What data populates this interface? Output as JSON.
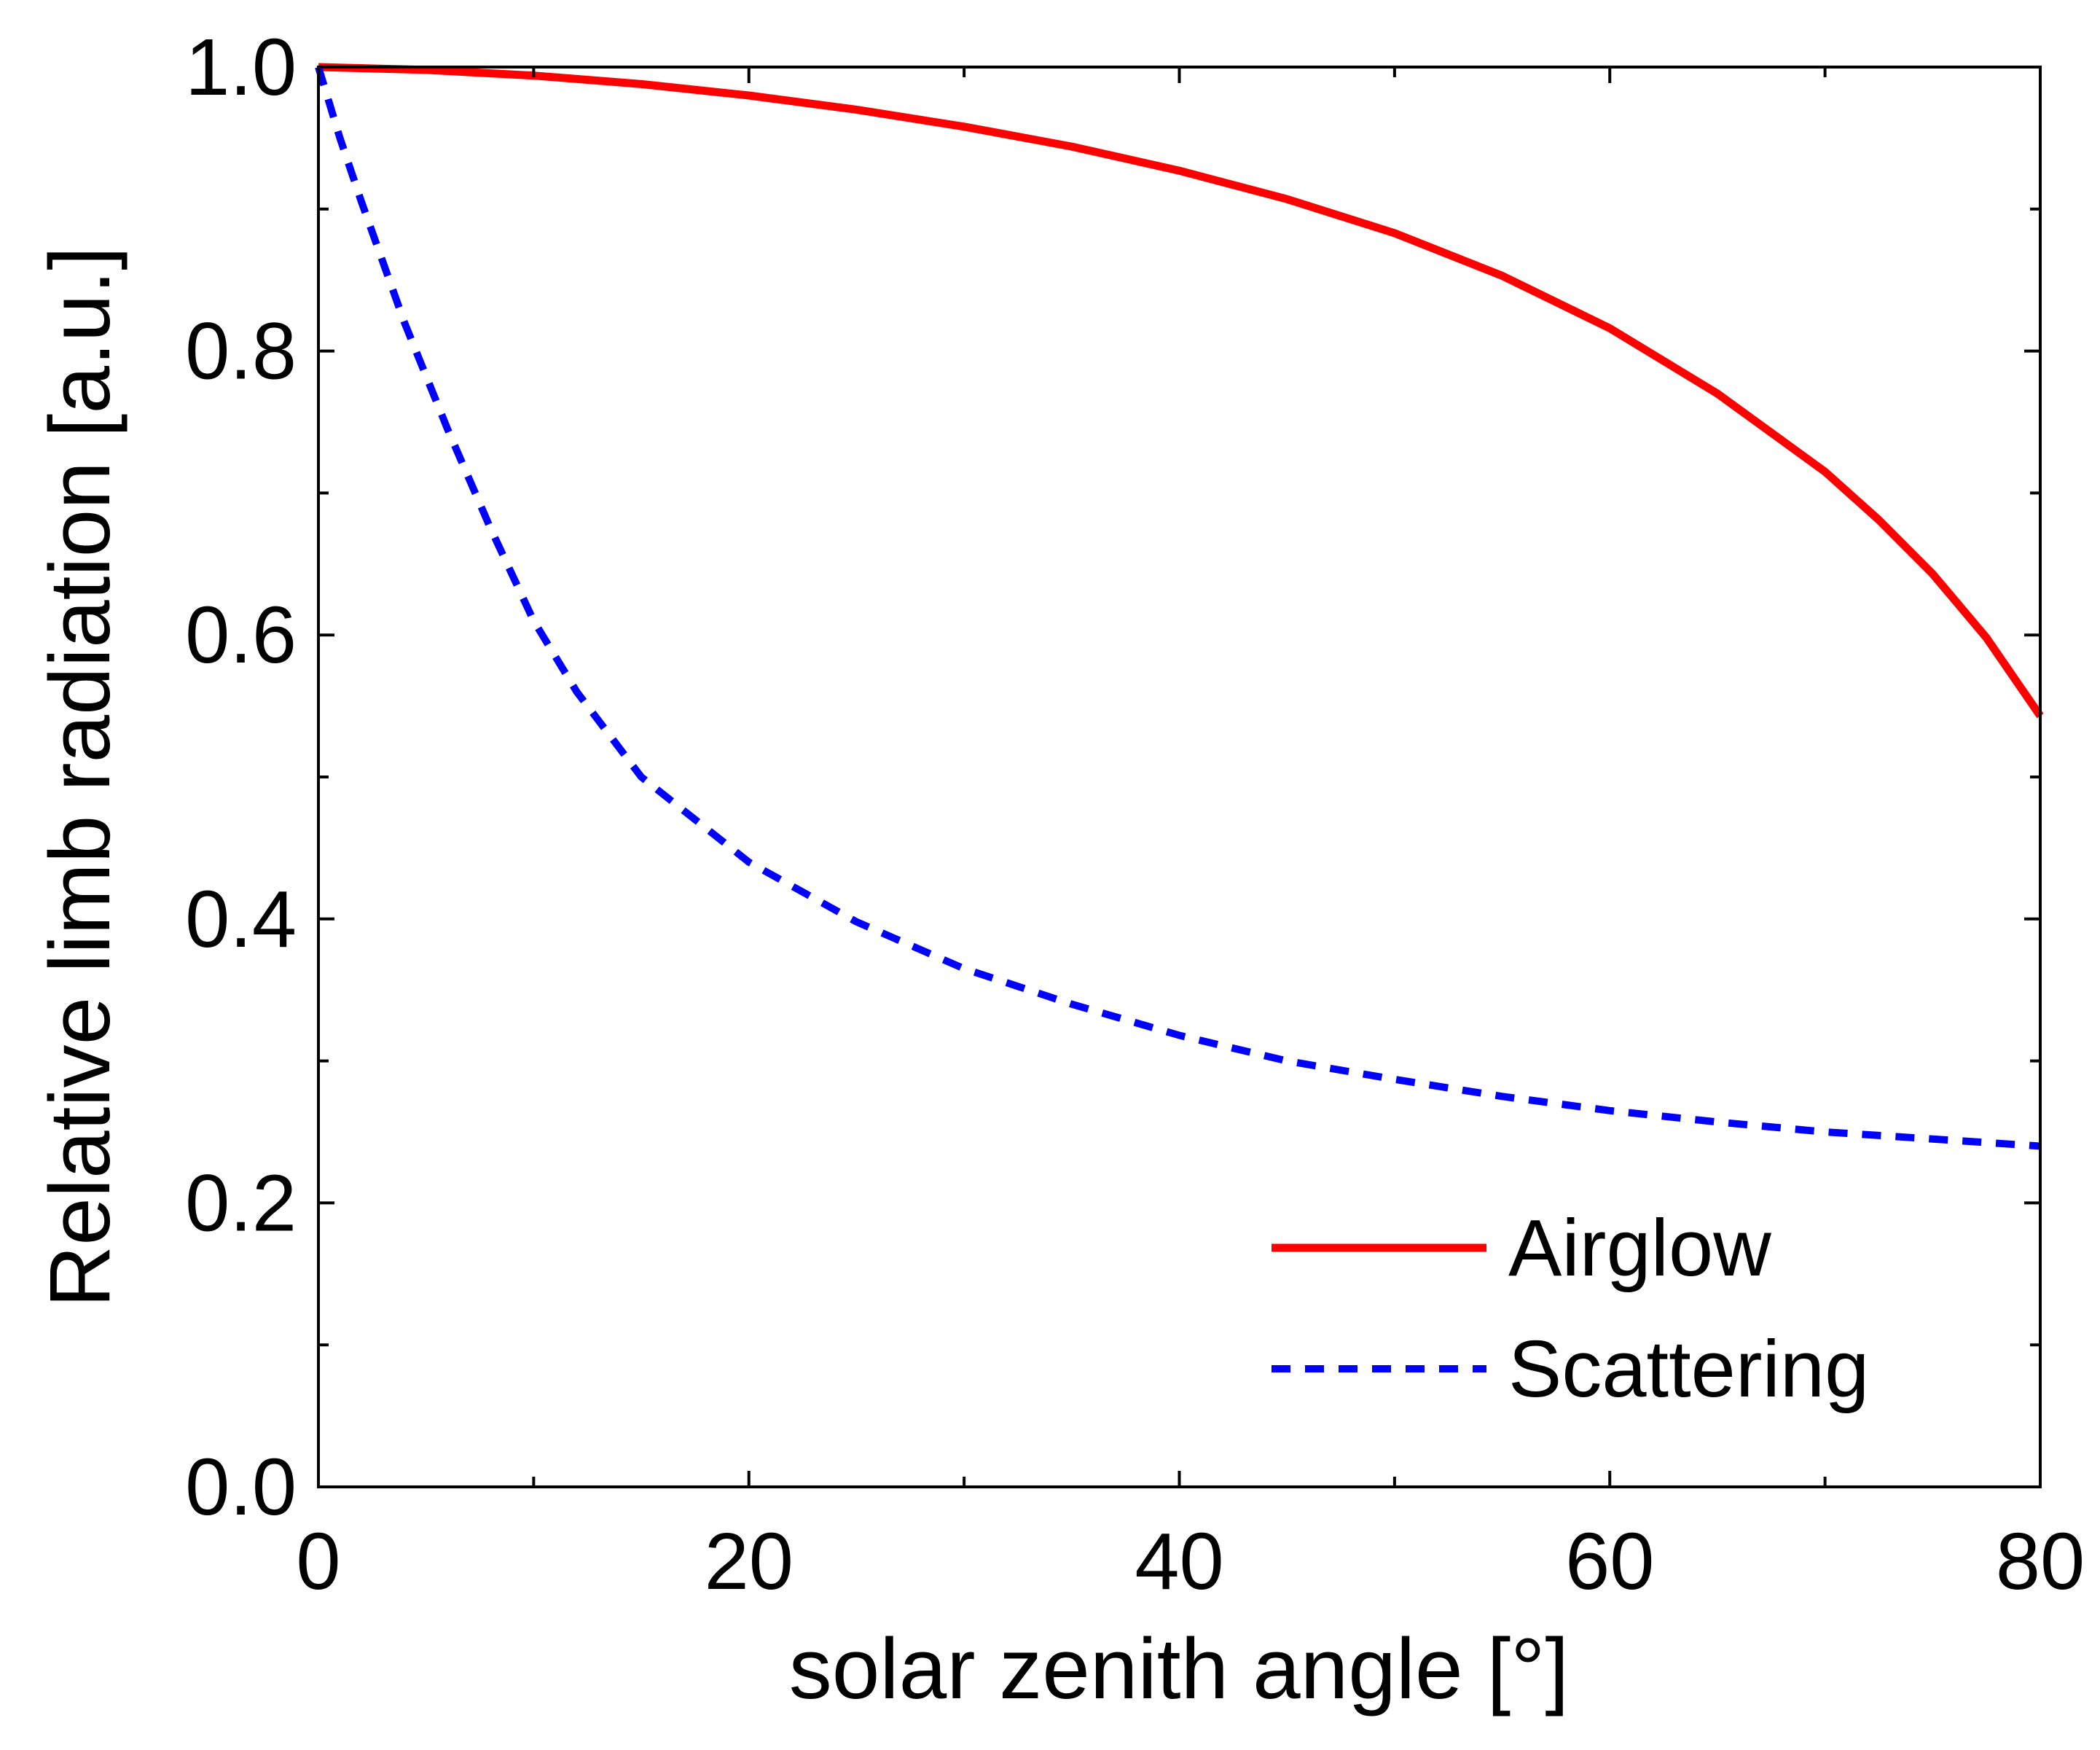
{
  "chart_data": {
    "type": "line",
    "title": "",
    "xlabel": "solar zenith angle [°]",
    "ylabel": "Relative limb radiation [a.u.]",
    "xlim": [
      0,
      80
    ],
    "ylim": [
      0.0,
      1.0
    ],
    "xticks": [
      0,
      20,
      40,
      60,
      80
    ],
    "xtick_labels": [
      "0",
      "20",
      "40",
      "60",
      "80"
    ],
    "yticks": [
      0.0,
      0.2,
      0.4,
      0.6,
      0.8,
      1.0
    ],
    "ytick_labels": [
      "0.0",
      "0.2",
      "0.4",
      "0.6",
      "0.8",
      "1.0"
    ],
    "grid": false,
    "legend_position": "bottom-right",
    "series": [
      {
        "name": "Airglow",
        "style": "solid",
        "color": "#ff0000",
        "x": [
          0,
          5,
          10,
          15,
          20,
          25,
          30,
          35,
          40,
          45,
          50,
          55,
          60,
          65,
          70,
          72.5,
          75,
          77.5,
          80
        ],
        "y": [
          1.0,
          0.998,
          0.994,
          0.988,
          0.98,
          0.97,
          0.958,
          0.944,
          0.927,
          0.907,
          0.883,
          0.853,
          0.816,
          0.77,
          0.715,
          0.681,
          0.643,
          0.598,
          0.543
        ]
      },
      {
        "name": "Scattering",
        "style": "dashed",
        "color": "#0000ff",
        "x": [
          0,
          1,
          2,
          4,
          6,
          8,
          10,
          12,
          15,
          20,
          25,
          30,
          35,
          40,
          45,
          50,
          55,
          60,
          65,
          70,
          75,
          80
        ],
        "y": [
          1.0,
          0.95,
          0.905,
          0.82,
          0.745,
          0.675,
          0.61,
          0.56,
          0.5,
          0.44,
          0.398,
          0.365,
          0.34,
          0.318,
          0.3,
          0.287,
          0.275,
          0.265,
          0.257,
          0.25,
          0.245,
          0.24
        ]
      }
    ]
  }
}
